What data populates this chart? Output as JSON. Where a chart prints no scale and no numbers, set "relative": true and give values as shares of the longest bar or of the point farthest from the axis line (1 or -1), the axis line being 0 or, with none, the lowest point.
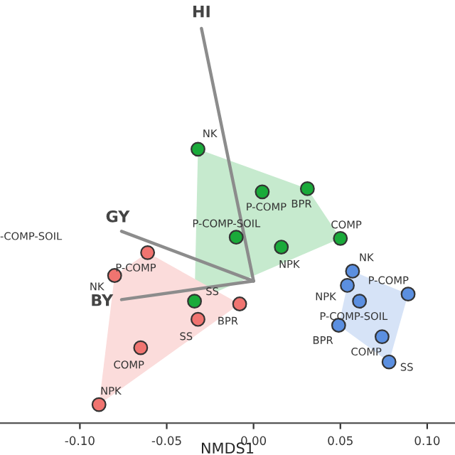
{
  "chart_data": {
    "type": "scatter",
    "relative": true,
    "xlabel": "NMDS1",
    "xlim": [
      -0.146,
      0.116
    ],
    "xticks": [
      {
        "value": -0.1,
        "label": "-0.10"
      },
      {
        "value": -0.05,
        "label": "-0.05"
      },
      {
        "value": 0.0,
        "label": "0.00"
      },
      {
        "value": 0.05,
        "label": "0.05"
      },
      {
        "value": 0.1,
        "label": "0.10"
      }
    ],
    "tick_labels": "x",
    "grid": false,
    "series": [
      {
        "color": "#1aaa3a",
        "marker": "circle",
        "x": [
          -0.032,
          0.005,
          0.031,
          -0.01,
          0.016,
          0.05,
          -0.034
        ],
        "values": [
          0.694,
          0.586,
          0.594,
          0.471,
          0.446,
          0.468,
          0.309
        ]
      },
      {
        "color": "#f07470",
        "marker": "circle",
        "x": [
          -0.061,
          -0.08,
          -0.008,
          -0.032,
          -0.065,
          -0.089
        ],
        "values": [
          0.432,
          0.374,
          0.302,
          0.263,
          0.191,
          0.047
        ]
      },
      {
        "color": "#5b8fe0",
        "marker": "circle",
        "x": [
          0.057,
          0.054,
          0.089,
          0.061,
          0.049,
          0.074,
          0.078
        ],
        "values": [
          0.385,
          0.349,
          0.327,
          0.309,
          0.248,
          0.219,
          0.155
        ]
      },
      {
        "type": "line",
        "color": "#8c8c8c",
        "marker": "none",
        "x": [
          0.0,
          -0.03
        ],
        "values": [
          0.36,
          1.0
        ]
      },
      {
        "type": "line",
        "color": "#8c8c8c",
        "marker": "none",
        "x": [
          0.0,
          -0.076
        ],
        "values": [
          0.36,
          0.486
        ]
      },
      {
        "type": "line",
        "color": "#8c8c8c",
        "marker": "none",
        "x": [
          0.0,
          -0.076
        ],
        "values": [
          0.36,
          0.313
        ]
      }
    ],
    "annotations": [
      {
        "text": "HI",
        "x": -0.03,
        "y": 1.0
      },
      {
        "text": "GY",
        "x": -0.076,
        "y": 0.486
      },
      {
        "text": "BY",
        "x": -0.076,
        "y": 0.313
      },
      {
        "text": "NK",
        "x": -0.032,
        "y": 0.694
      },
      {
        "text": "P-COMP",
        "x": 0.005,
        "y": 0.586
      },
      {
        "text": "BPR",
        "x": 0.031,
        "y": 0.594
      },
      {
        "text": "P-COMP-SOIL",
        "x": -0.01,
        "y": 0.471
      },
      {
        "text": "NPK",
        "x": 0.016,
        "y": 0.446
      },
      {
        "text": "COMP",
        "x": 0.05,
        "y": 0.468
      },
      {
        "text": "SS",
        "x": -0.034,
        "y": 0.309
      },
      {
        "text": "P-COMP",
        "x": -0.061,
        "y": 0.432
      },
      {
        "text": "NK",
        "x": -0.08,
        "y": 0.374
      },
      {
        "text": "BPR",
        "x": -0.008,
        "y": 0.302
      },
      {
        "text": "SS",
        "x": -0.032,
        "y": 0.263
      },
      {
        "text": "COMP",
        "x": -0.065,
        "y": 0.191
      },
      {
        "text": "NPK",
        "x": -0.089,
        "y": 0.047
      },
      {
        "text": "NK",
        "x": 0.057,
        "y": 0.385
      },
      {
        "text": "NPK",
        "x": 0.054,
        "y": 0.349
      },
      {
        "text": "P-COMP",
        "x": 0.089,
        "y": 0.327
      },
      {
        "text": "P-COMP-SOIL",
        "x": 0.061,
        "y": 0.309
      },
      {
        "text": "BPR",
        "x": 0.049,
        "y": 0.248
      },
      {
        "text": "COMP",
        "x": 0.074,
        "y": 0.219
      },
      {
        "text": "SS",
        "x": 0.078,
        "y": 0.155
      },
      "-COMP-SOIL"
    ]
  }
}
